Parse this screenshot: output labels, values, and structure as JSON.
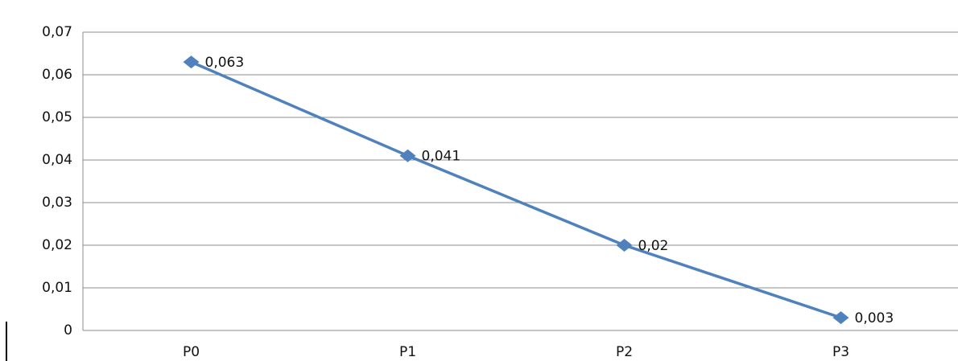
{
  "chart_data": {
    "type": "line",
    "categories": [
      "P0",
      "P1",
      "P2",
      "P3"
    ],
    "series": [
      {
        "color": "#4f81bd",
        "values": [
          0.063,
          0.041,
          0.02,
          0.003
        ],
        "value_labels": [
          "0,063",
          "0,041",
          "0,02",
          "0,003"
        ]
      }
    ],
    "ylim": [
      0,
      0.07
    ],
    "yticks": [
      0,
      {
        "value": 0.01,
        "label": "0,01"
      },
      {
        "value": 0.02,
        "label": "0,02"
      },
      {
        "value": 0.03,
        "label": "0,03"
      },
      {
        "value": 0.04,
        "label": "0,04"
      },
      {
        "value": 0.05,
        "label": "0,05"
      },
      {
        "value": 0.06,
        "label": "0,06"
      },
      {
        "value": 0.07,
        "label": "0,07"
      }
    ],
    "grid": true
  }
}
